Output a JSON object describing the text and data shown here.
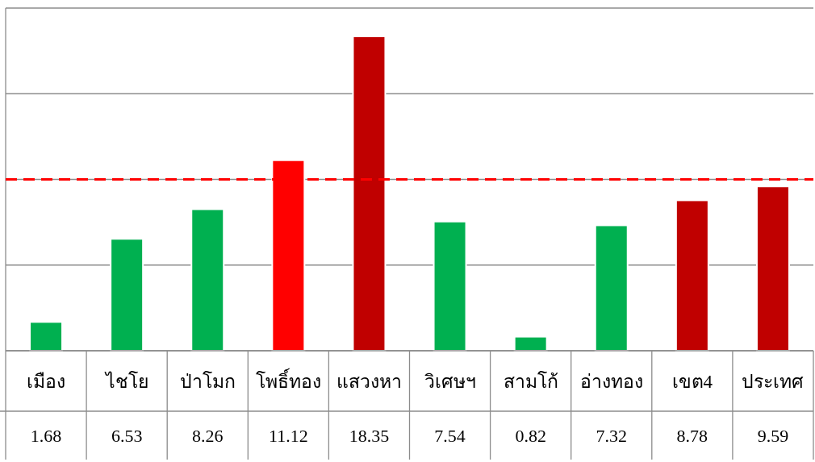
{
  "chart_data": {
    "type": "bar",
    "categories": [
      "เมือง",
      "ไชโย",
      "ป่าโมก",
      "โพธิ์ทอง",
      "แสวงหา",
      "วิเศษฯ",
      "สามโก้",
      "อ่างทอง",
      "เขต4",
      "ประเทศ"
    ],
    "values": [
      1.68,
      6.53,
      8.26,
      11.12,
      18.35,
      7.54,
      0.82,
      7.32,
      8.78,
      9.59
    ],
    "colors": [
      "#00b050",
      "#00b050",
      "#00b050",
      "#ff0000",
      "#c00000",
      "#00b050",
      "#00b050",
      "#00b050",
      "#c00000",
      "#c00000"
    ],
    "ylim": [
      0,
      20
    ],
    "yticks": [
      {
        "value": 0,
        "label": null
      },
      {
        "value": 5,
        "label": null
      },
      {
        "value": 10,
        "label": null
      },
      {
        "value": 15,
        "label": null
      },
      {
        "value": 20,
        "label": null
      }
    ],
    "grid": "y",
    "tick_labels": "x",
    "data_labels": true,
    "ref_lines": [
      {
        "axis": "y",
        "value": 10,
        "color": "#ff0000",
        "line_style": "dashed"
      }
    ]
  }
}
